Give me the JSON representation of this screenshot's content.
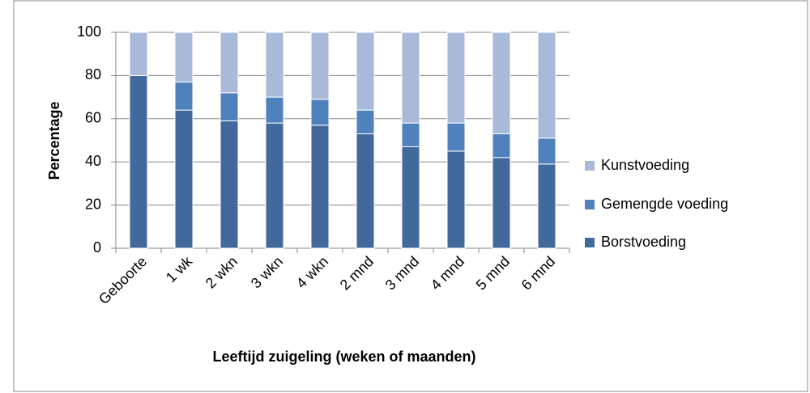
{
  "chart_data": {
    "type": "stacked_bar",
    "categories": [
      "Geboorte",
      "1 wk",
      "2 wkn",
      "3 wkn",
      "4 wkn",
      "2 mnd",
      "3 mnd",
      "4 mnd",
      "5 mnd",
      "6 mnd"
    ],
    "series": [
      {
        "name": "Borstvoeding",
        "color": "#41699c",
        "values": [
          80,
          64,
          59,
          58,
          57,
          53,
          47,
          45,
          42,
          39
        ]
      },
      {
        "name": "Gemengde voeding",
        "color": "#4f81bd",
        "values": [
          0,
          13,
          13,
          12,
          12,
          11,
          11,
          13,
          11,
          12
        ]
      },
      {
        "name": "Kunstvoeding",
        "color": "#a9b9d9",
        "values": [
          20,
          23,
          28,
          30,
          31,
          36,
          42,
          42,
          47,
          49
        ]
      }
    ],
    "ylabel": "Percentage",
    "xlabel": "Leeftijd zuigeling (weken of maanden)",
    "ylim": [
      0,
      100
    ],
    "yticks": [
      0,
      20,
      40,
      60,
      80,
      100
    ],
    "grid": true,
    "legend": "right"
  }
}
